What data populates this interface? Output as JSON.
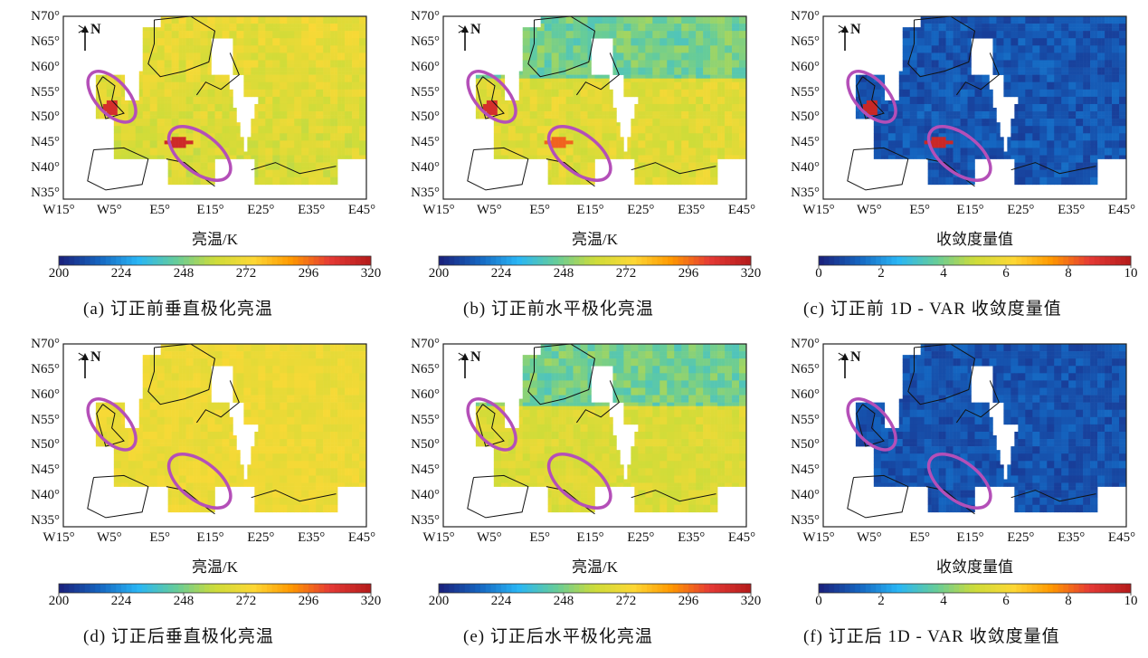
{
  "panels": [
    {
      "id": "a",
      "caption": "(a) 订正前垂直极化亮温",
      "unit_label": "亮温/K",
      "colorbar_ticks": [
        "200",
        "224",
        "248",
        "272",
        "296",
        "320"
      ],
      "field": "tb_v_before",
      "ellipse_color": "#b44fb8"
    },
    {
      "id": "b",
      "caption": "(b) 订正前水平极化亮温",
      "unit_label": "亮温/K",
      "colorbar_ticks": [
        "200",
        "224",
        "248",
        "272",
        "296",
        "320"
      ],
      "field": "tb_h_before",
      "ellipse_color": "#b44fb8"
    },
    {
      "id": "c",
      "caption": "(c) 订正前 1D - VAR 收敛度量值",
      "unit_label": "收敛度量值",
      "colorbar_ticks": [
        "0",
        "2",
        "4",
        "6",
        "8",
        "10"
      ],
      "field": "conv_before",
      "ellipse_color": "#b44fb8"
    },
    {
      "id": "d",
      "caption": "(d) 订正后垂直极化亮温",
      "unit_label": "亮温/K",
      "colorbar_ticks": [
        "200",
        "224",
        "248",
        "272",
        "296",
        "320"
      ],
      "field": "tb_v_after",
      "ellipse_color": "#b44fb8"
    },
    {
      "id": "e",
      "caption": "(e) 订正后水平极化亮温",
      "unit_label": "亮温/K",
      "colorbar_ticks": [
        "200",
        "224",
        "248",
        "272",
        "296",
        "320"
      ],
      "field": "tb_h_after",
      "ellipse_color": "#b44fb8"
    },
    {
      "id": "f",
      "caption": "(f) 订正后 1D - VAR 收敛度量值",
      "unit_label": "收敛度量值",
      "colorbar_ticks": [
        "0",
        "2",
        "4",
        "6",
        "8",
        "10"
      ],
      "field": "conv_after",
      "ellipse_color": "#b44fb8"
    }
  ],
  "map": {
    "north_label": "N",
    "lat_labels": [
      "N70°",
      "N65°",
      "N60°",
      "N55°",
      "N50°",
      "N45°",
      "N40°",
      "N35°"
    ],
    "lon_labels": [
      "W15°",
      "W5°",
      "E5°",
      "E15°",
      "E25°",
      "E35°",
      "E45°"
    ]
  },
  "colors": {
    "colormap": [
      "#1a237e",
      "#1565c0",
      "#29b6f6",
      "#66cc99",
      "#cddc39",
      "#fdd835",
      "#ff9800",
      "#e53935",
      "#b71c1c"
    ],
    "coastline": "#111111",
    "nodata": "#ffffff"
  }
}
